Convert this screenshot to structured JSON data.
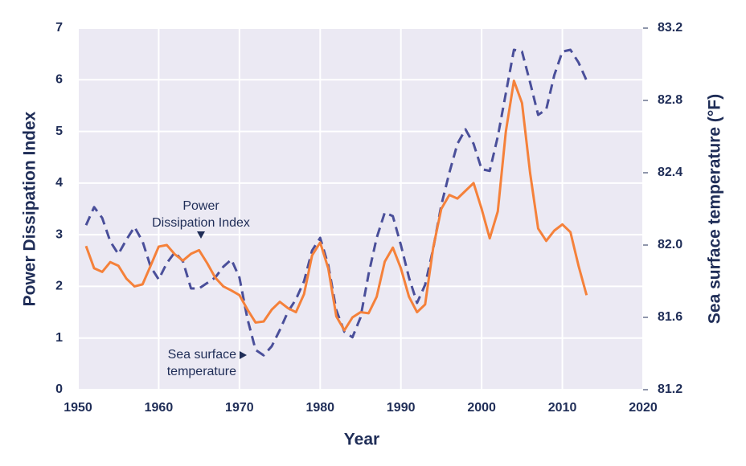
{
  "chart_data": {
    "type": "line",
    "x_label": "Year",
    "y_label": "Power Dissipation Index",
    "y2_label": "Sea surface temperature (°F)",
    "x": [
      1951,
      1952,
      1953,
      1954,
      1955,
      1956,
      1957,
      1958,
      1959,
      1960,
      1961,
      1962,
      1963,
      1964,
      1965,
      1966,
      1967,
      1968,
      1969,
      1970,
      1971,
      1972,
      1973,
      1974,
      1975,
      1976,
      1977,
      1978,
      1979,
      1980,
      1981,
      1982,
      1983,
      1984,
      1985,
      1986,
      1987,
      1988,
      1989,
      1990,
      1991,
      1992,
      1993,
      1994,
      1995,
      1996,
      1997,
      1998,
      1999,
      2000,
      2001,
      2002,
      2003,
      2004,
      2005,
      2006,
      2007,
      2008,
      2009,
      2010,
      2011,
      2012,
      2013
    ],
    "series": [
      {
        "name_lines": [
          "Power",
          "Dissipation Index"
        ],
        "color": "#f5813a",
        "dashed": false,
        "values": [
          2.78,
          2.35,
          2.28,
          2.47,
          2.4,
          2.15,
          2.0,
          2.04,
          2.4,
          2.77,
          2.8,
          2.62,
          2.5,
          2.63,
          2.7,
          2.45,
          2.17,
          2.0,
          1.92,
          1.83,
          1.55,
          1.3,
          1.32,
          1.55,
          1.7,
          1.58,
          1.5,
          1.85,
          2.6,
          2.85,
          2.35,
          1.42,
          1.15,
          1.4,
          1.5,
          1.48,
          1.8,
          2.48,
          2.75,
          2.35,
          1.8,
          1.5,
          1.65,
          2.75,
          3.5,
          3.77,
          3.7,
          3.85,
          4.0,
          3.5,
          2.93,
          3.45,
          5.0,
          5.98,
          5.55,
          4.2,
          3.12,
          2.88,
          3.08,
          3.2,
          3.05,
          2.4,
          1.83
        ]
      },
      {
        "name_lines": [
          "Sea surface",
          "temperature"
        ],
        "color": "#4a4f9a",
        "dashed": true,
        "axis": "y2",
        "values": [
          82.11,
          82.21,
          82.15,
          82.02,
          81.95,
          82.03,
          82.1,
          82.02,
          81.88,
          81.81,
          81.9,
          81.96,
          81.91,
          81.76,
          81.76,
          81.79,
          81.82,
          81.88,
          81.92,
          81.82,
          81.59,
          81.42,
          81.39,
          81.44,
          81.53,
          81.63,
          81.7,
          81.8,
          81.97,
          82.04,
          81.89,
          81.64,
          81.52,
          81.49,
          81.6,
          81.84,
          82.04,
          82.18,
          82.16,
          82.0,
          81.82,
          81.68,
          81.78,
          81.98,
          82.22,
          82.4,
          82.56,
          82.64,
          82.56,
          82.42,
          82.41,
          82.6,
          82.84,
          83.08,
          83.07,
          82.9,
          82.72,
          82.75,
          82.94,
          83.07,
          83.08,
          83.01,
          82.91
        ]
      }
    ],
    "xlim": [
      1950,
      2020
    ],
    "xticks": [
      1950,
      1960,
      1970,
      1980,
      1990,
      2000,
      2010,
      2020
    ],
    "ylim": [
      0,
      7
    ],
    "yticks": [
      0,
      1,
      2,
      3,
      4,
      5,
      6,
      7
    ],
    "y2lim": [
      81.2,
      83.2
    ],
    "y2ticks": [
      81.2,
      81.6,
      {
        "value": 82,
        "label": "82.0"
      },
      82.4,
      82.8,
      83.2
    ],
    "grid": true
  }
}
